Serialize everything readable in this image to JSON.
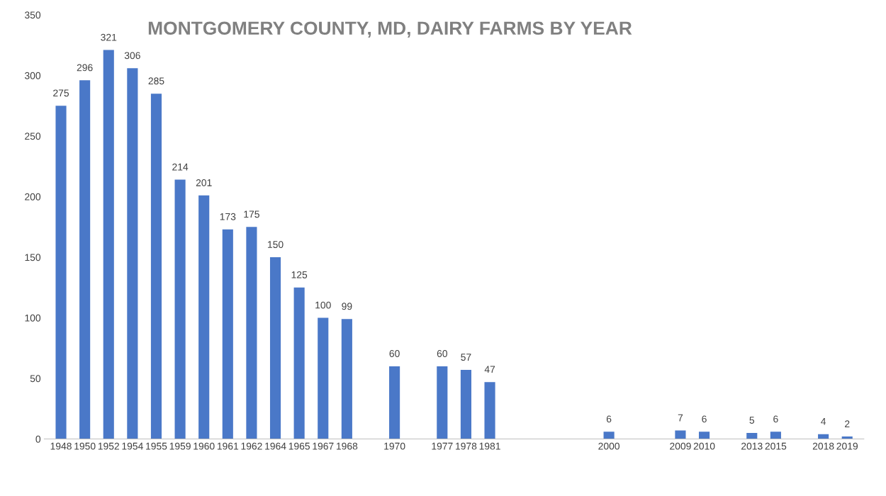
{
  "chart_data": {
    "type": "bar",
    "title": "MONTGOMERY COUNTY, MD, DAIRY FARMS BY YEAR",
    "categories": [
      "1948",
      "1950",
      "1952",
      "1954",
      "1955",
      "1959",
      "1960",
      "1961",
      "1962",
      "1964",
      "1965",
      "1967",
      "1968",
      null,
      "1970",
      null,
      "1977",
      "1978",
      "1981",
      null,
      null,
      null,
      null,
      "2000",
      null,
      null,
      "2009",
      "2010",
      null,
      "2013",
      "2015",
      null,
      "2018",
      "2019"
    ],
    "values": [
      275,
      296,
      321,
      306,
      285,
      214,
      201,
      173,
      175,
      150,
      125,
      100,
      99,
      null,
      60,
      null,
      60,
      57,
      47,
      null,
      null,
      null,
      null,
      6,
      null,
      null,
      7,
      6,
      null,
      5,
      6,
      null,
      4,
      2
    ],
    "color": "#4a78c8",
    "ylim": [
      0,
      350
    ],
    "yticks": [
      0,
      50,
      100,
      150,
      200,
      250,
      300,
      350
    ],
    "grid": false,
    "data_labels": true
  }
}
